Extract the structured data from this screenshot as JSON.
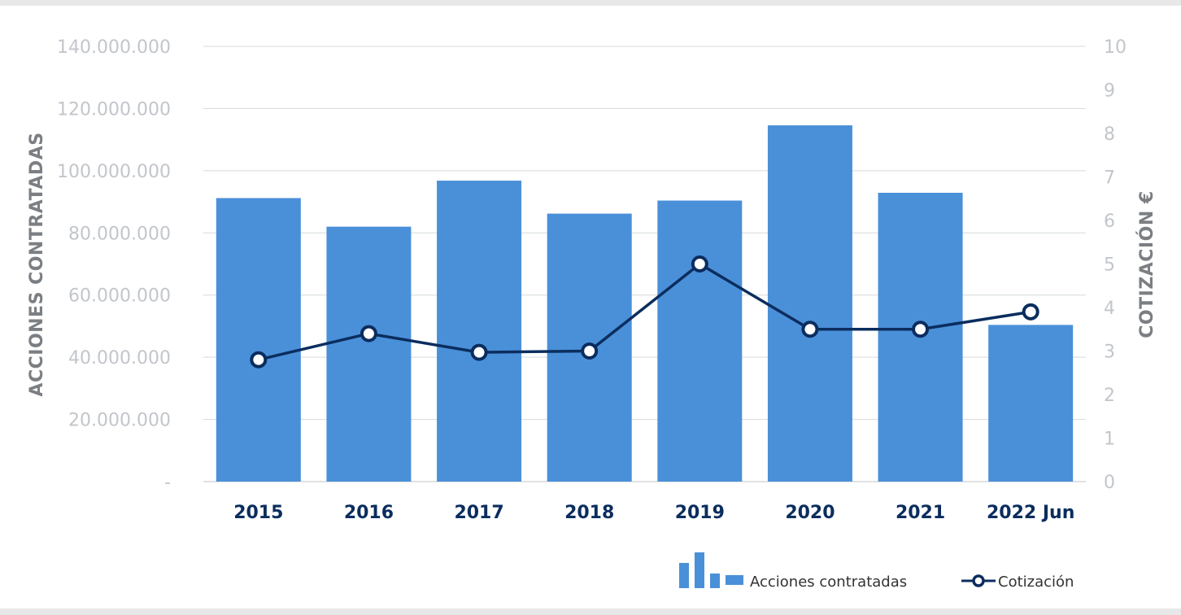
{
  "chart_data": {
    "type": "bar",
    "categories": [
      "2015",
      "2016",
      "2017",
      "2018",
      "2019",
      "2020",
      "2021",
      "2022 Jun"
    ],
    "series": [
      {
        "name": "Acciones contratadas",
        "type": "bar",
        "axis": "left",
        "color": "#4a90d9",
        "values": [
          91200000,
          82000000,
          96800000,
          86200000,
          90400000,
          114600000,
          92900000,
          50400000
        ]
      },
      {
        "name": "Cotización",
        "type": "line",
        "axis": "right",
        "color": "#0b2d5e",
        "values": [
          2.8,
          3.4,
          2.97,
          3.0,
          5.0,
          3.5,
          3.5,
          3.9
        ]
      }
    ],
    "ylabel": "ACCIONES CONTRATADAS",
    "y2label": "COTIZACIÓN €",
    "ylim": [
      0,
      140000000
    ],
    "y2lim": [
      0,
      10
    ],
    "yticks": [
      {
        "value": 0,
        "label": "-"
      },
      {
        "value": 20000000,
        "label": "20.000.000"
      },
      {
        "value": 40000000,
        "label": "40.000.000"
      },
      {
        "value": 60000000,
        "label": "60.000.000"
      },
      {
        "value": 80000000,
        "label": "80.000.000"
      },
      {
        "value": 100000000,
        "label": "100.000.000"
      },
      {
        "value": 120000000,
        "label": "120.000.000"
      },
      {
        "value": 140000000,
        "label": "140.000.000"
      }
    ],
    "y2ticks": [
      "0",
      "1",
      "2",
      "3",
      "4",
      "5",
      "6",
      "7",
      "8",
      "9",
      "10"
    ],
    "grid": true,
    "legend": {
      "placement": "bottom-right",
      "entries": [
        "Acciones contratadas",
        "Cotización"
      ]
    }
  }
}
